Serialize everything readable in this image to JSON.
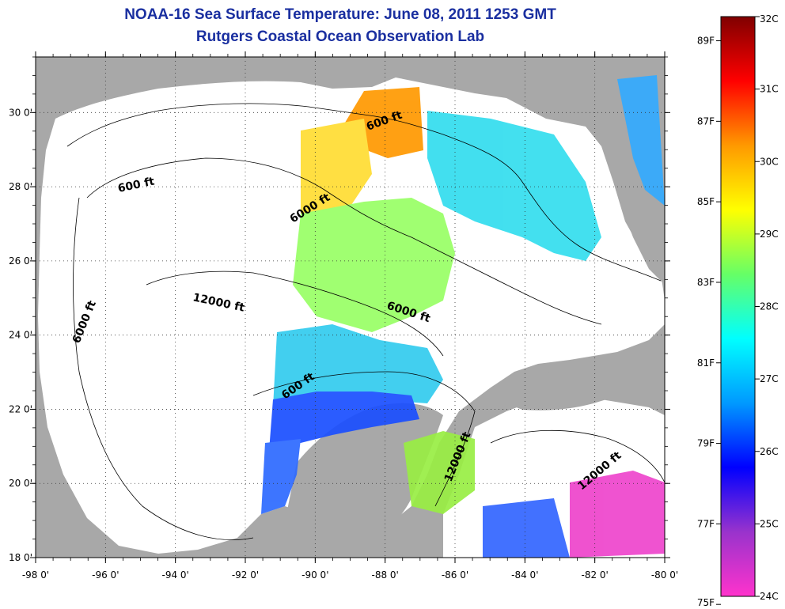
{
  "title_line1": "NOAA-16 Sea Surface Temperature:  June 08, 2011 1253 GMT",
  "title_line2": "Rutgers Coastal Ocean Observation Lab",
  "axes": {
    "lon_ticks": [
      "-98 0'",
      "-96 0'",
      "-94 0'",
      "-92 0'",
      "-90 0'",
      "-88 0'",
      "-86 0'",
      "-84 0'",
      "-82 0'",
      "-80 0'"
    ],
    "lat_ticks": [
      "30 0'",
      "28 0'",
      "26 0'",
      "24 0'",
      "22 0'",
      "20 0'",
      "18 0'"
    ],
    "lon_range": [
      -98,
      -80
    ],
    "lat_range": [
      18,
      31.5
    ]
  },
  "contour_labels": [
    "600 ft",
    "600 ft",
    "6000 ft",
    "6000 ft",
    "12000 ft",
    "6000 ft",
    "600 ft",
    "12000 ft",
    "12000 ft"
  ],
  "colorbar": {
    "celsius_labels": [
      "32C",
      "31C",
      "30C",
      "29C",
      "28C",
      "27C",
      "26C",
      "25C",
      "24C"
    ],
    "fahrenheit_labels": [
      "89F",
      "87F",
      "85F",
      "83F",
      "81F",
      "79F",
      "77F",
      "75F"
    ],
    "celsius_values": [
      32,
      31,
      30,
      29,
      28,
      27,
      26,
      25,
      24
    ],
    "fahrenheit_values": [
      89,
      87,
      85,
      83,
      81,
      79,
      77,
      75
    ],
    "range_c": [
      24,
      32
    ],
    "colors": [
      "#ff33cc",
      "#9933cc",
      "#0000ff",
      "#0099ff",
      "#00ffff",
      "#66ff66",
      "#ffff00",
      "#ff9900",
      "#ff0000",
      "#800000"
    ]
  },
  "colors": {
    "title": "#1a2fa0",
    "land": "#a8a8a8",
    "water": "#ffffff",
    "grid": "#333333"
  }
}
